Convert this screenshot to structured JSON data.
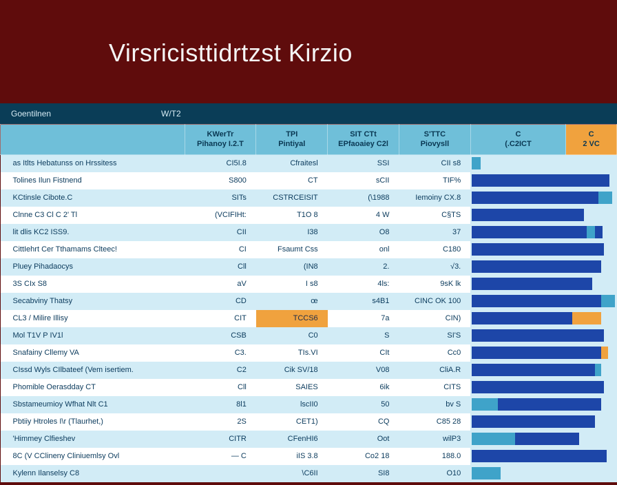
{
  "colors": {
    "page_bg": "#5f0c0c",
    "title_text": "#f5f5f5",
    "header_bar_bg": "#0a3d57",
    "header_bar_text": "#d7ecf4",
    "th_bg": "#6fbfd9",
    "th_bg_alt": "#f0a23e",
    "th_text": "#0a3853",
    "row_even": "#d2ecf6",
    "row_odd": "#ffffff",
    "cell_text": "#0a3a5c",
    "bar_primary": "#1d46a8",
    "bar_secondary": "#3fa3c9",
    "bar_accent": "#f0a23e"
  },
  "title": "Virsricisttidrtzst Kirzio",
  "header_bar": {
    "left": "Goentilnen",
    "right": "W/T2"
  },
  "columns": [
    {
      "l1": "",
      "l2": ""
    },
    {
      "l1": "KWerTr",
      "l2": "Pihanoy I.2.T"
    },
    {
      "l1": "TPI",
      "l2": "Pintiyal"
    },
    {
      "l1": "SIT   CTt",
      "l2": "EPfaoaiey C2l"
    },
    {
      "l1": "S'TTC",
      "l2": "Piovysll"
    },
    {
      "l1": "C",
      "l2": "(.C2ICT"
    },
    {
      "l1": "C",
      "l2": "2  VC"
    }
  ],
  "rows": [
    {
      "name": "as Itlts Hebatunss on Hrssitess",
      "c1": "CI5I.8",
      "c2": "Cfraitesl",
      "c3": "SSI",
      "c4": "CII s8",
      "bar": [
        {
          "w": 0.06,
          "c": "bar_secondary"
        }
      ]
    },
    {
      "name": "Tolines Ilun Fistnend",
      "c1": "S800",
      "c2": "CT",
      "c3": "sCII",
      "c4": "TIF%",
      "bar": [
        {
          "w": 0.96,
          "c": "bar_primary"
        }
      ]
    },
    {
      "name": "KCtinsle Cibote.C",
      "c1": "SITs",
      "c2": "CSTRCEISIT",
      "c3": "(\\1988",
      "c4": "Iemoiny CX.8",
      "bar": [
        {
          "w": 0.88,
          "c": "bar_primary"
        },
        {
          "w": 0.1,
          "c": "bar_secondary"
        }
      ]
    },
    {
      "name": "Clnne C3        Cl        C 2' Tl",
      "c1": "(VCIFIHt:",
      "c2": "T1O 8",
      "c3": "4   W",
      "c4": "C§TS",
      "bar": [
        {
          "w": 0.78,
          "c": "bar_primary"
        }
      ]
    },
    {
      "name": "lit dlis KC2                   ISS9.",
      "c1": "CII",
      "c2": "I38",
      "c3": "O8",
      "c4": "37",
      "bar": [
        {
          "w": 0.8,
          "c": "bar_primary"
        },
        {
          "w": 0.06,
          "c": "bar_secondary"
        },
        {
          "w": 0.05,
          "c": "bar_primary"
        }
      ]
    },
    {
      "name": "CittIehrt Cer Tthamams Clteec!",
      "c1": "CI",
      "c2": "Fsaumt Css",
      "c3": "onl",
      "c4": "C180",
      "bar": [
        {
          "w": 0.92,
          "c": "bar_primary"
        }
      ]
    },
    {
      "name": "Pluey Pihadaocys",
      "c1": "Cll",
      "c2": "(IN8",
      "c3": "2.",
      "c4": "√3.",
      "bar": [
        {
          "w": 0.9,
          "c": "bar_primary"
        }
      ]
    },
    {
      "name": "3S CIx S8",
      "c1": "aV",
      "c2": "I s8",
      "c3": "4ls:",
      "c4": "9sK lk",
      "bar": [
        {
          "w": 0.84,
          "c": "bar_primary"
        }
      ]
    },
    {
      "name": "Secabviny Thatsy",
      "c1": "CD",
      "c2": "œ",
      "c3": "s4B1",
      "c4": "CINC OK 100",
      "bar": [
        {
          "w": 0.9,
          "c": "bar_primary"
        },
        {
          "w": 0.1,
          "c": "bar_secondary"
        }
      ]
    },
    {
      "name": "CL3  / Milire Illisy",
      "c1": "CIT",
      "c2": "TCCS6",
      "c3": "7a",
      "c4": "CIN)",
      "bar": [
        {
          "w": 0.7,
          "c": "bar_primary"
        },
        {
          "w": 0.2,
          "c": "bar_accent"
        }
      ]
    },
    {
      "name": "Mol T1V       P       IV1l",
      "c1": "CSB",
      "c2": "C0",
      "c3": "S",
      "c4": "SI'S",
      "bar": [
        {
          "w": 0.92,
          "c": "bar_primary"
        }
      ]
    },
    {
      "name": "Snafainy Cllemy VA",
      "c1": "C3.",
      "c2": "TIs.VI",
      "c3": "CIt",
      "c4": "Cc0",
      "bar": [
        {
          "w": 0.9,
          "c": "bar_primary"
        },
        {
          "w": 0.05,
          "c": "bar_accent"
        }
      ]
    },
    {
      "name": "CIssd Wyls CIlbateef (Vem isertiem.",
      "c1": "C2",
      "c2": "Cik SV/18",
      "c3": "V08",
      "c4": "CliA.R",
      "bar": [
        {
          "w": 0.86,
          "c": "bar_primary"
        },
        {
          "w": 0.04,
          "c": "bar_secondary"
        }
      ]
    },
    {
      "name": "Phomible Oerasdday   CT",
      "c1": "Cll",
      "c2": "SAIES",
      "c3": "6ik",
      "c4": "CITS",
      "bar": [
        {
          "w": 0.92,
          "c": "bar_primary"
        }
      ]
    },
    {
      "name": "Sbstameumioy Wfhat Nlt C1",
      "c1": "8l1",
      "c2": "lscII0",
      "c3": "50",
      "c4": "bv S",
      "bar": [
        {
          "w": 0.18,
          "c": "bar_secondary"
        },
        {
          "w": 0.72,
          "c": "bar_primary"
        }
      ]
    },
    {
      "name": "Pbtiiy Htroles I\\r (Tlaurhet,)",
      "c1": "2S",
      "c2": "CET1)",
      "c3": "CQ",
      "c4": "C85 28",
      "bar": [
        {
          "w": 0.86,
          "c": "bar_primary"
        }
      ]
    },
    {
      "name": "'Himmey Clfieshev",
      "c1": "CITR",
      "c2": "CFenHI6",
      "c3": "Oot",
      "c4": "wilP3",
      "bar": [
        {
          "w": 0.3,
          "c": "bar_secondary"
        },
        {
          "w": 0.45,
          "c": "bar_primary"
        }
      ]
    },
    {
      "name": "8C   (V CClineny Cliniuemlsy    Ovl",
      "c1": "— C",
      "c2": "iIS      3.8",
      "c3": "Co2 18",
      "c4": "188.0",
      "bar": [
        {
          "w": 0.94,
          "c": "bar_primary"
        }
      ]
    },
    {
      "name": "Kylenn Ilanselsy C8",
      "c1": "",
      "c2": "\\C6II",
      "c3": "SI8",
      "c4": "O10",
      "bar": [
        {
          "w": 0.2,
          "c": "bar_secondary"
        }
      ]
    }
  ],
  "highlighted_cell": {
    "row": 9,
    "col": 2
  }
}
